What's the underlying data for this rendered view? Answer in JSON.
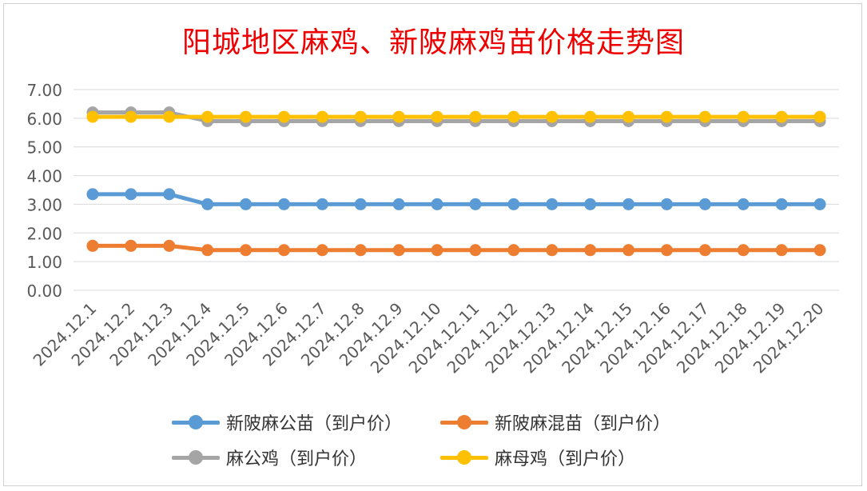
{
  "chart_data": {
    "type": "line",
    "title": "阳城地区麻鸡、新陂麻鸡苗价格走势图",
    "xlabel": "",
    "ylabel": "",
    "ylim": [
      0,
      7
    ],
    "yticks": [
      "0.00",
      "1.00",
      "2.00",
      "3.00",
      "4.00",
      "5.00",
      "6.00",
      "7.00"
    ],
    "grid": true,
    "legend_position": "bottom",
    "categories": [
      "2024.12.1",
      "2024.12.2",
      "2024.12.3",
      "2024.12.4",
      "2024.12.5",
      "2024.12.6",
      "2024.12.7",
      "2024.12.8",
      "2024.12.9",
      "2024.12.10",
      "2024.12.11",
      "2024.12.12",
      "2024.12.13",
      "2024.12.14",
      "2024.12.15",
      "2024.12.16",
      "2024.12.17",
      "2024.12.18",
      "2024.12.19",
      "2024.12.20"
    ],
    "series": [
      {
        "name": "新陂麻公苗（到户价）",
        "color": "#5b9bd5",
        "values": [
          3.35,
          3.35,
          3.35,
          3.0,
          3.0,
          3.0,
          3.0,
          3.0,
          3.0,
          3.0,
          3.0,
          3.0,
          3.0,
          3.0,
          3.0,
          3.0,
          3.0,
          3.0,
          3.0,
          3.0
        ]
      },
      {
        "name": "新陂麻混苗（到户价）",
        "color": "#ed7d31",
        "values": [
          1.55,
          1.55,
          1.55,
          1.4,
          1.4,
          1.4,
          1.4,
          1.4,
          1.4,
          1.4,
          1.4,
          1.4,
          1.4,
          1.4,
          1.4,
          1.4,
          1.4,
          1.4,
          1.4,
          1.4
        ]
      },
      {
        "name": "麻公鸡（到户价）",
        "color": "#a5a5a5",
        "values": [
          6.2,
          6.2,
          6.2,
          5.9,
          5.9,
          5.9,
          5.9,
          5.9,
          5.9,
          5.9,
          5.9,
          5.9,
          5.9,
          5.9,
          5.9,
          5.9,
          5.9,
          5.9,
          5.9,
          5.9
        ]
      },
      {
        "name": "麻母鸡（到户价）",
        "color": "#ffc000",
        "values": [
          6.05,
          6.05,
          6.05,
          6.05,
          6.05,
          6.05,
          6.05,
          6.05,
          6.05,
          6.05,
          6.05,
          6.05,
          6.05,
          6.05,
          6.05,
          6.05,
          6.05,
          6.05,
          6.05,
          6.05
        ]
      }
    ]
  }
}
